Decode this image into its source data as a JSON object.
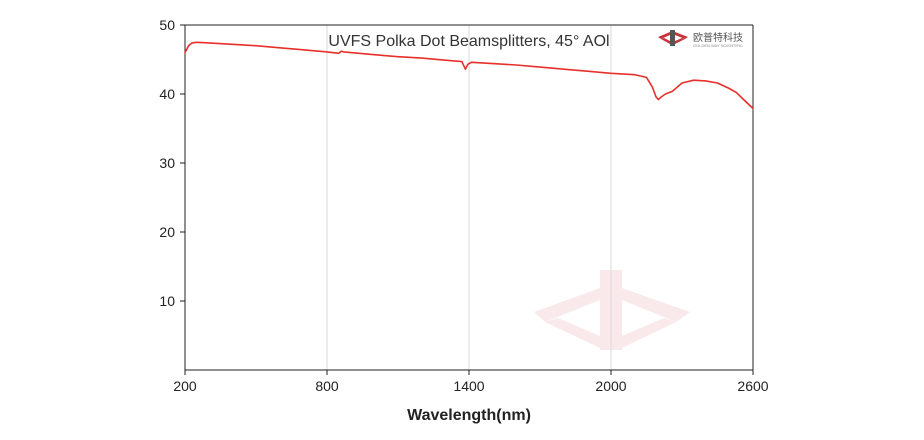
{
  "chart_data": {
    "type": "line",
    "title": "UVFS Polka Dot Beamsplitters, 45° AOl",
    "xlabel": "Wavelength(nm)",
    "ylabel": "",
    "xlim": [
      200,
      2600
    ],
    "ylim": [
      0,
      50
    ],
    "xticks": [
      "200",
      "800",
      "1400",
      "2000",
      "2600"
    ],
    "yticks": [
      "10",
      "20",
      "30",
      "40",
      "50"
    ],
    "grid": "vertical",
    "series": [
      {
        "color": "#e8302a",
        "x": [
          200,
          215,
          230,
          250,
          300,
          400,
          500,
          600,
          700,
          800,
          850,
          860,
          870,
          900,
          1000,
          1100,
          1200,
          1300,
          1370,
          1385,
          1395,
          1410,
          1500,
          1600,
          1700,
          1800,
          1900,
          2000,
          2100,
          2150,
          2175,
          2190,
          2200,
          2210,
          2230,
          2260,
          2300,
          2350,
          2400,
          2450,
          2500,
          2530,
          2560,
          2600
        ],
        "y": [
          46.0,
          47.0,
          47.4,
          47.5,
          47.4,
          47.2,
          47.0,
          46.7,
          46.4,
          46.1,
          45.9,
          46.2,
          46.1,
          46.0,
          45.7,
          45.4,
          45.2,
          44.9,
          44.7,
          43.6,
          44.3,
          44.6,
          44.4,
          44.2,
          43.9,
          43.6,
          43.3,
          43.0,
          42.8,
          42.4,
          41.0,
          39.6,
          39.2,
          39.5,
          40.0,
          40.4,
          41.6,
          42.0,
          41.9,
          41.6,
          40.8,
          40.2,
          39.2,
          37.9
        ]
      }
    ]
  },
  "watermark": {
    "brand_cn": "欧普特科技",
    "brand_en": "GOLDEN WAY SCIENTIFIC",
    "accent": "#c8323c"
  }
}
